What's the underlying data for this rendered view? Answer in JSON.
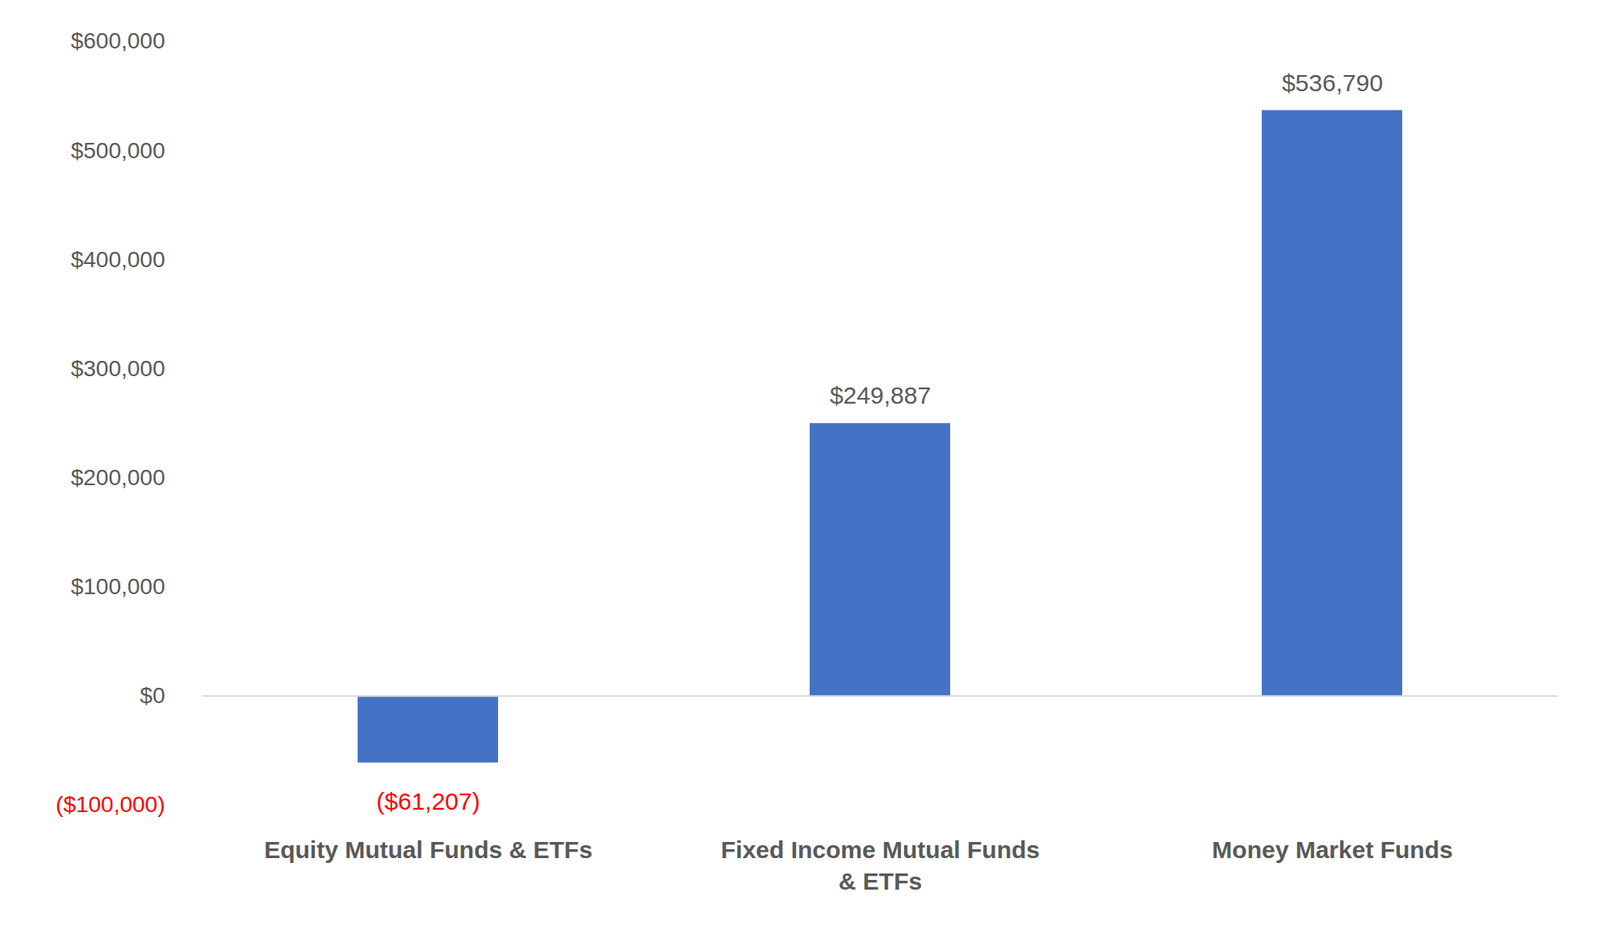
{
  "chart_data": {
    "type": "bar",
    "categories": [
      "Equity Mutual Funds & ETFs",
      "Fixed Income Mutual Funds & ETFs",
      "Money Market Funds"
    ],
    "values": [
      -61207,
      249887,
      536790
    ],
    "value_labels": [
      "($61,207)",
      "$249,887",
      "$536,790"
    ],
    "color": "#4472c4",
    "ylim": [
      -100000,
      600000
    ],
    "yticks": [
      {
        "value": -100000,
        "label": "($100,000)"
      },
      {
        "value": 0,
        "label": "$0"
      },
      {
        "value": 100000,
        "label": "$100,000"
      },
      {
        "value": 200000,
        "label": "$200,000"
      },
      {
        "value": 300000,
        "label": "$300,000"
      },
      {
        "value": 400000,
        "label": "$400,000"
      },
      {
        "value": 500000,
        "label": "$500,000"
      },
      {
        "value": 600000,
        "label": "$600,000"
      }
    ],
    "grid": false,
    "data_labels": true
  }
}
